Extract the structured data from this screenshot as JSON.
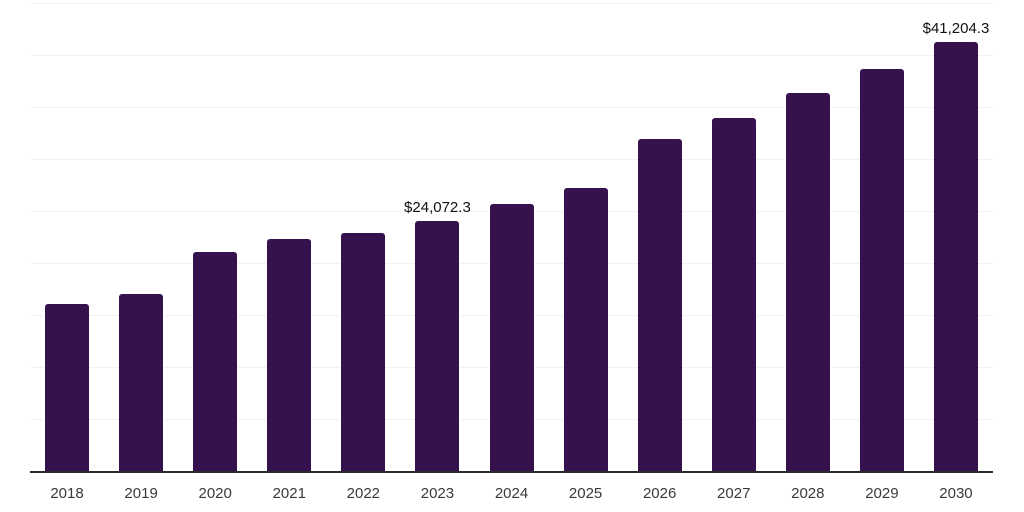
{
  "chart_data": {
    "type": "bar",
    "title": "",
    "xlabel": "",
    "ylabel": "",
    "categories": [
      "2018",
      "2019",
      "2020",
      "2021",
      "2022",
      "2023",
      "2024",
      "2025",
      "2026",
      "2027",
      "2028",
      "2029",
      "2030"
    ],
    "values": [
      16100,
      17000,
      21100,
      22300,
      22900,
      24072.3,
      25650,
      27200,
      31900,
      33900,
      36300,
      38700,
      41204.3
    ],
    "data_labels": {
      "2023": "$24,072.3",
      "2030": "$41,204.3"
    },
    "ylim": [
      0,
      45000
    ],
    "gridline_step": 5000,
    "grid": "horizontal-only",
    "legend": "none",
    "y_axis_tick_labels_visible": false,
    "colors": {
      "bar": "#35114D",
      "gridline": "#f2f2f2",
      "axis_line": "#2b2b2b",
      "x_tick_label": "#3a3a3a",
      "value_label": "#111111",
      "background": "#ffffff"
    }
  }
}
